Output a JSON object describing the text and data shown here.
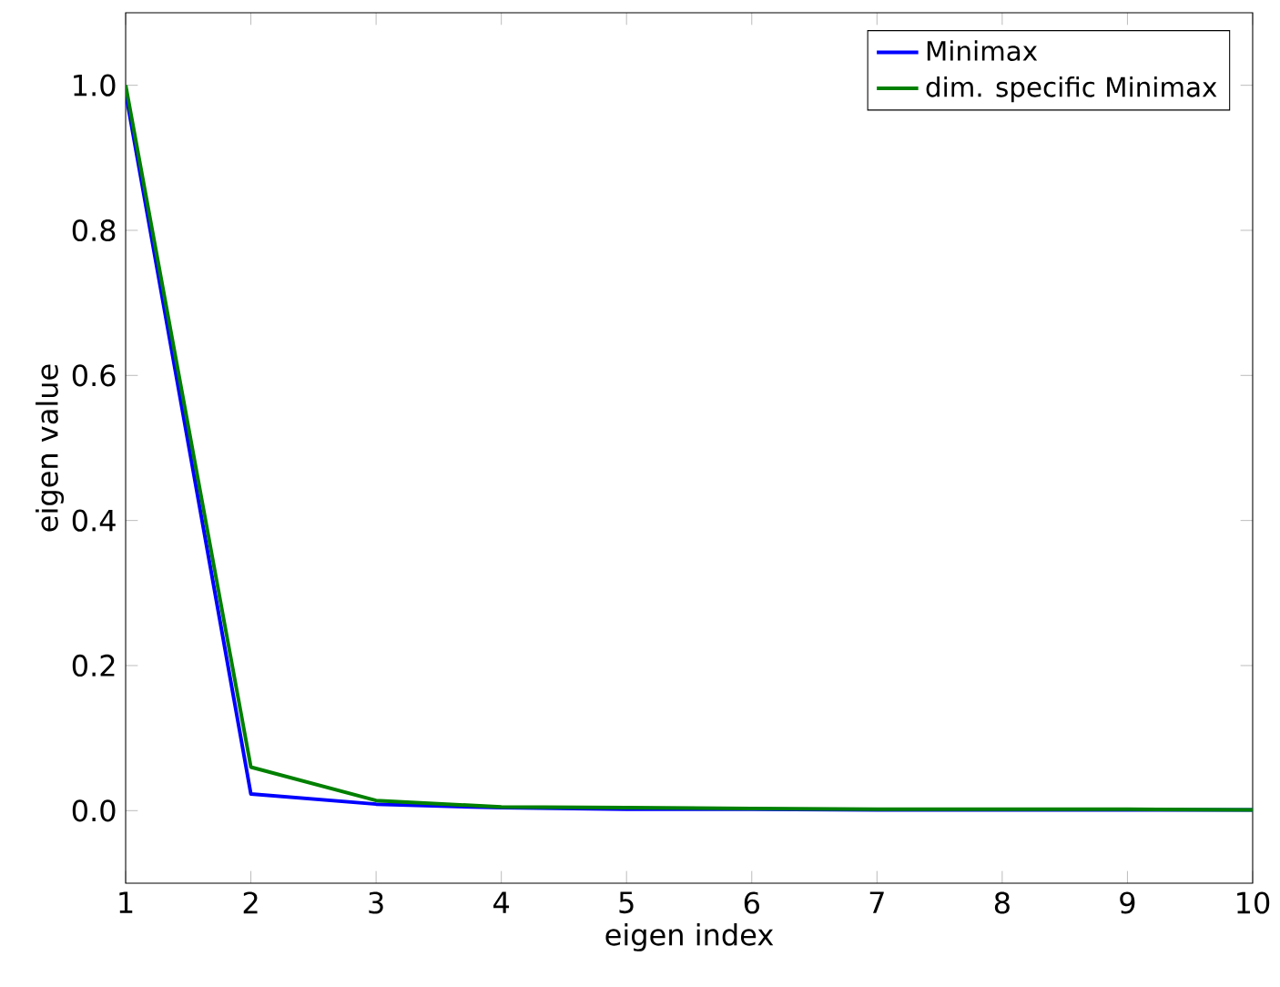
{
  "chart_data": {
    "type": "line",
    "xlabel": "eigen index",
    "ylabel": "eigen value",
    "x": [
      1,
      2,
      3,
      4,
      5,
      6,
      7,
      8,
      9,
      10
    ],
    "series": [
      {
        "name": "Minimax",
        "color": "#0000ff",
        "values": [
          0.99,
          0.023,
          0.009,
          0.004,
          0.002,
          0.002,
          0.001,
          0.001,
          0.001,
          0.001
        ]
      },
      {
        "name": "dim. specific Minimax",
        "color": "#008000",
        "values": [
          1.0,
          0.06,
          0.014,
          0.005,
          0.004,
          0.003,
          0.002,
          0.002,
          0.002,
          0.001
        ]
      }
    ],
    "xlim": [
      1,
      10
    ],
    "ylim": [
      -0.1,
      1.1
    ],
    "xticks": [
      1,
      2,
      3,
      4,
      5,
      6,
      7,
      8,
      9,
      10
    ],
    "yticks": [
      {
        "value": 0,
        "label": "0.0"
      },
      {
        "value": 0.2,
        "label": "0.2"
      },
      {
        "value": 0.4,
        "label": "0.4"
      },
      {
        "value": 0.6,
        "label": "0.6"
      },
      {
        "value": 0.8,
        "label": "0.8"
      },
      {
        "value": 1.0,
        "label": "1.0"
      }
    ],
    "legend": "top right",
    "grid": false,
    "marker": "none",
    "line_style": "solid"
  }
}
